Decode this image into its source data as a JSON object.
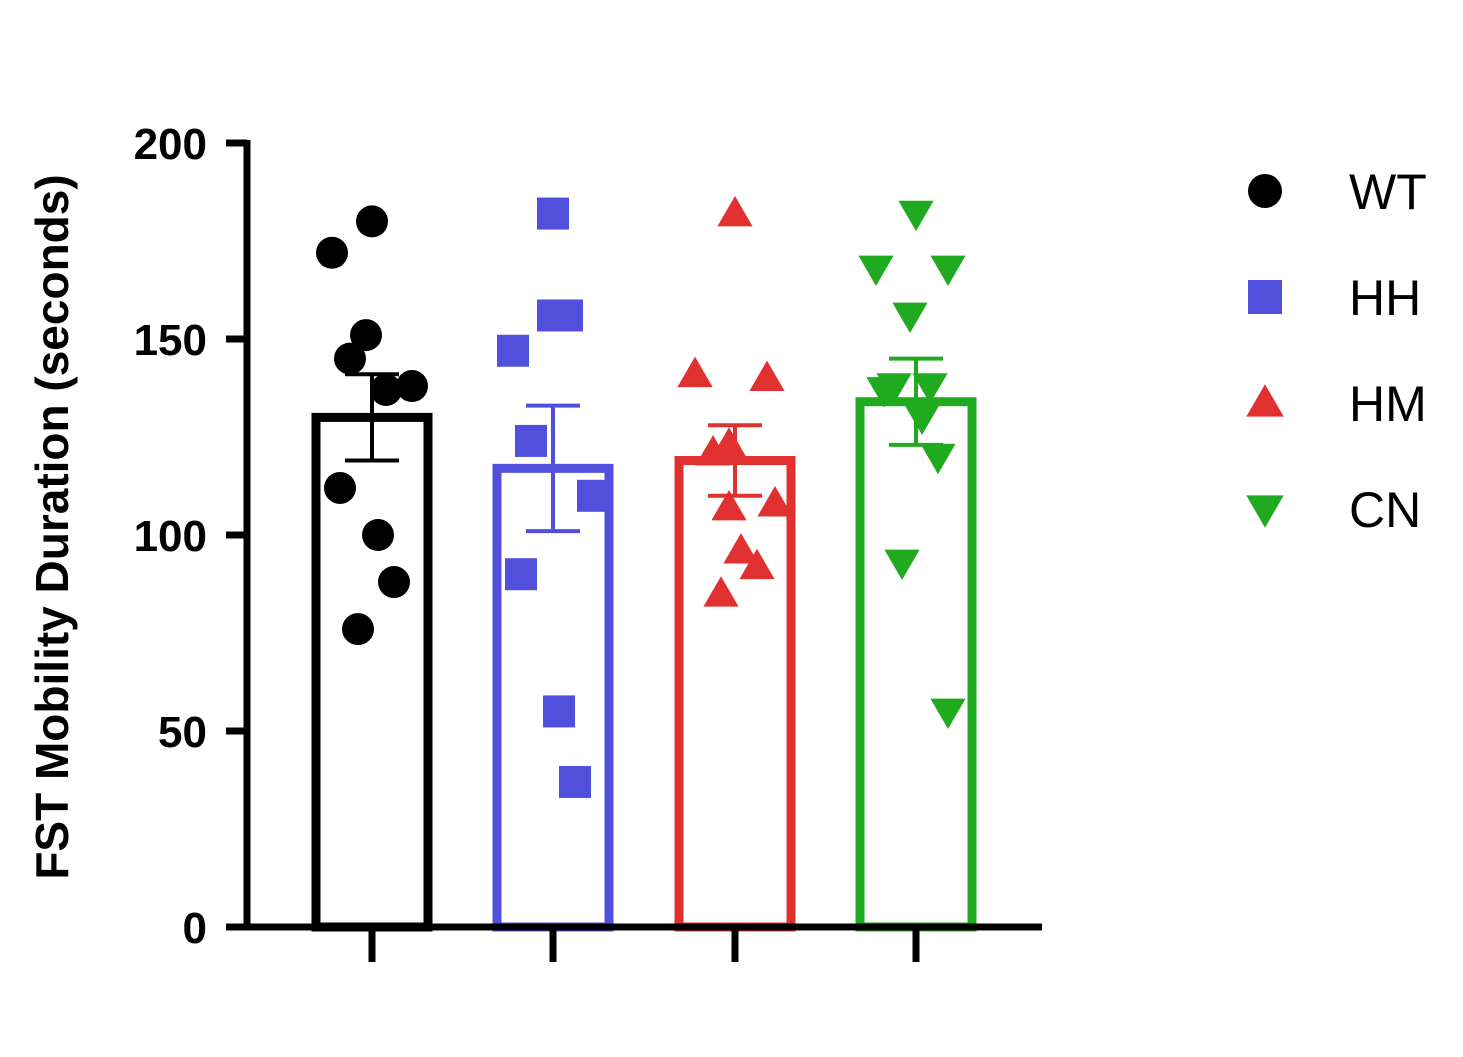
{
  "chart_data": {
    "type": "bar",
    "title": "",
    "xlabel": "",
    "ylabel": "FST Mobility Duration (seconds)",
    "ylim": [
      0,
      200
    ],
    "yticks": [
      0,
      50,
      100,
      150,
      200
    ],
    "categories": [
      "WT",
      "HH",
      "HM",
      "CN"
    ],
    "legend_position": "right",
    "series": [
      {
        "name": "WT",
        "color": "#000000",
        "marker": "circle",
        "mean": 130,
        "sem": 11,
        "points": [
          180,
          172,
          137,
          151,
          145,
          138,
          112,
          100,
          88,
          76
        ]
      },
      {
        "name": "HH",
        "color": "#5050dd",
        "marker": "square",
        "mean": 117,
        "sem": 16,
        "points": [
          182,
          147,
          156,
          156,
          124,
          110,
          90,
          55,
          37
        ]
      },
      {
        "name": "HM",
        "color": "#e03030",
        "marker": "triangle-up",
        "mean": 119,
        "sem": 9,
        "points": [
          182,
          141,
          140,
          123,
          121,
          108,
          107,
          96,
          92,
          85
        ]
      },
      {
        "name": "CN",
        "color": "#20aa20",
        "marker": "triangle-down",
        "mean": 134,
        "sem": 11,
        "points": [
          182,
          168,
          168,
          156,
          138,
          138,
          137,
          130,
          120,
          93,
          55
        ]
      }
    ]
  }
}
